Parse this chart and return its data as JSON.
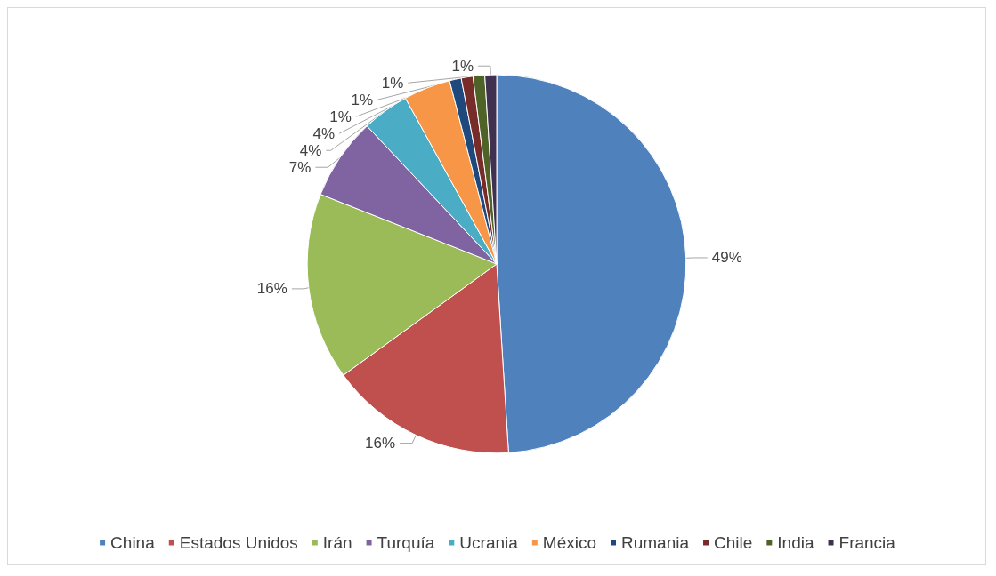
{
  "chart_data": {
    "type": "pie",
    "categories": [
      "China",
      "Estados Unidos",
      "Irán",
      "Turquía",
      "Ucrania",
      "México",
      "Rumania",
      "Chile",
      "India",
      "Francia"
    ],
    "values": [
      49,
      16,
      16,
      7,
      4,
      4,
      1,
      1,
      1,
      1
    ],
    "colors": [
      "#4f81bd",
      "#c0504d",
      "#9bbb59",
      "#8064a2",
      "#4bacc6",
      "#f79646",
      "#1f497d",
      "#772c2a",
      "#4f6228",
      "#403151"
    ],
    "value_labels": [
      "49%",
      "16%",
      "16%",
      "7%",
      "4%",
      "4%",
      "1%",
      "1%",
      "1%",
      "1%"
    ],
    "legend": "bottom"
  }
}
